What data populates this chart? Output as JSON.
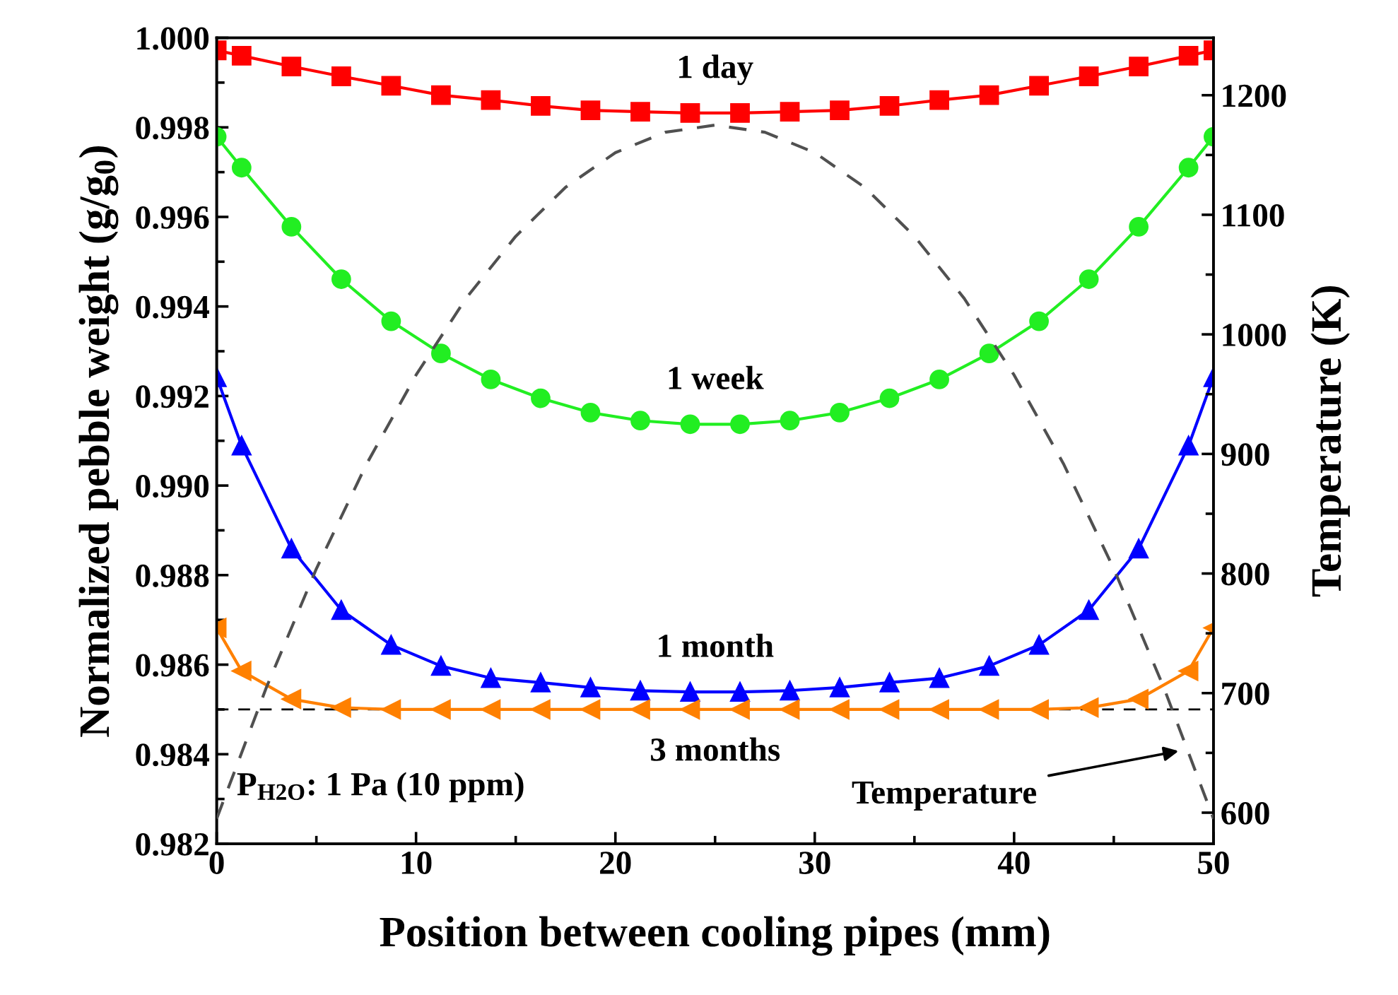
{
  "chart_data": {
    "type": "line",
    "xlabel": "Position between cooling pipes (mm)",
    "ylabel": "Normalized pebble weight (g/g$_{0}$)",
    "y2label": "Temperature (K)",
    "x": [
      0,
      1.25,
      3.75,
      6.25,
      8.75,
      11.25,
      13.75,
      16.25,
      18.75,
      21.25,
      23.75,
      26.25,
      28.75,
      31.25,
      33.75,
      36.25,
      38.75,
      41.25,
      43.75,
      46.25,
      48.75,
      50
    ],
    "series": [
      {
        "name": "1 day",
        "color": "#ff0000",
        "marker": "square",
        "values": [
          0.99972,
          0.9996,
          0.99936,
          0.99914,
          0.99893,
          0.99872,
          0.99861,
          0.99848,
          0.99838,
          0.99835,
          0.99832,
          0.99832,
          0.99835,
          0.99838,
          0.99848,
          0.99861,
          0.99872,
          0.99893,
          0.99914,
          0.99936,
          0.9996,
          0.99972
        ]
      },
      {
        "name": "1 week",
        "color": "#22ee22",
        "marker": "circle",
        "values": [
          0.99779,
          0.9971,
          0.99578,
          0.99461,
          0.99367,
          0.99295,
          0.99237,
          0.99195,
          0.99163,
          0.99145,
          0.99137,
          0.99137,
          0.99145,
          0.99163,
          0.99195,
          0.99237,
          0.99295,
          0.99367,
          0.99461,
          0.99578,
          0.9971,
          0.99779
        ]
      },
      {
        "name": "1 month",
        "color": "#0000ff",
        "marker": "triangle",
        "values": [
          0.99242,
          0.99089,
          0.98859,
          0.98722,
          0.98644,
          0.98597,
          0.9857,
          0.9856,
          0.98549,
          0.98542,
          0.98539,
          0.98539,
          0.98542,
          0.98549,
          0.9856,
          0.9857,
          0.98597,
          0.98644,
          0.98722,
          0.98859,
          0.99089,
          0.99242
        ]
      },
      {
        "name": "3 months",
        "color": "#ff8000",
        "marker": "triangle_left",
        "values": [
          0.98682,
          0.98586,
          0.98523,
          0.98504,
          0.985,
          0.985,
          0.985,
          0.985,
          0.985,
          0.985,
          0.985,
          0.985,
          0.985,
          0.985,
          0.985,
          0.985,
          0.985,
          0.985,
          0.98504,
          0.98523,
          0.98586,
          0.98682
        ]
      },
      {
        "color": "#505050",
        "marker": "none",
        "line_style": "dashed",
        "axis": "y2",
        "x": [
          0,
          2.5,
          5,
          7.5,
          10,
          12.5,
          15,
          17.5,
          20,
          22.5,
          25,
          27.5,
          30,
          32.5,
          35,
          37.5,
          40,
          42.5,
          45,
          47.5,
          50
        ],
        "values": [
          595,
          705,
          804,
          891,
          966,
          1030,
          1082,
          1123,
          1152,
          1169,
          1175,
          1169,
          1152,
          1123,
          1082,
          1030,
          966,
          891,
          804,
          705,
          595
        ]
      }
    ],
    "xlim": [
      0,
      50
    ],
    "xticks": [
      0,
      10,
      20,
      30,
      40,
      50
    ],
    "ylim": [
      0.982,
      1.0
    ],
    "yticks": [
      0.982,
      0.984,
      0.986,
      0.988,
      {
        "value": 0.99,
        "label": "0.990"
      },
      0.992,
      0.994,
      0.996,
      0.998,
      {
        "value": 1.0,
        "label": "1.000"
      }
    ],
    "y2lim": [
      574,
      1248
    ],
    "y2ticks": [
      600,
      700,
      800,
      900,
      1000,
      1100,
      1200
    ],
    "ref_lines": [
      {
        "axis": "y",
        "value": 0.985,
        "color": "#000000",
        "line_style": "dashed"
      }
    ],
    "annotations": [
      "P$_{H2O}$: 1 Pa (10 ppm)",
      "Temperature"
    ],
    "grid": false,
    "legend": false
  }
}
